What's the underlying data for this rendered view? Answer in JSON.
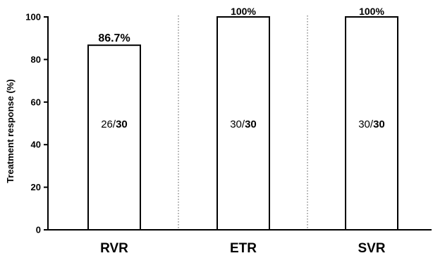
{
  "chart_data": {
    "type": "bar",
    "categories": [
      "RVR",
      "ETR",
      "SVR"
    ],
    "values": [
      86.7,
      100,
      100
    ],
    "value_labels": [
      "86.7%",
      "100%",
      "100%"
    ],
    "inner_labels": [
      {
        "num": "26",
        "den": "30"
      },
      {
        "num": "30",
        "den": "30"
      },
      {
        "num": "30",
        "den": "30"
      }
    ],
    "ylabel": "Treatment response (%)",
    "xlabel": "",
    "title": "",
    "ylim": [
      0,
      100
    ],
    "yticks": [
      0,
      20,
      40,
      60,
      80,
      100
    ],
    "grid": false,
    "colors": {
      "bar_fill": "#ffffff",
      "bar_stroke": "#000000",
      "divider": "#555555"
    }
  }
}
